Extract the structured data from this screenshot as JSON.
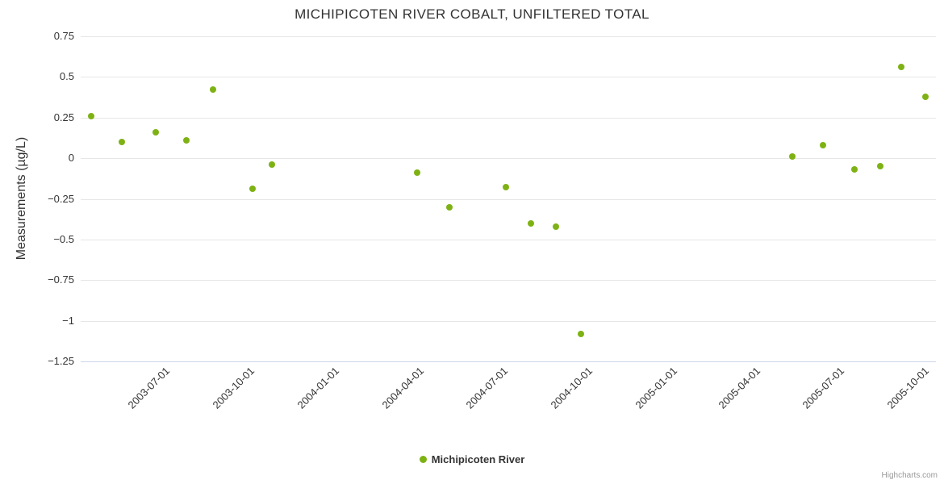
{
  "chart_data": {
    "type": "scatter",
    "title": "MICHIPICOTEN RIVER COBALT, UNFILTERED TOTAL",
    "xlabel": "",
    "ylabel": "Measurements (µg/L)",
    "grid": "horizontal",
    "legend_position": "bottom-center",
    "series": [
      {
        "name": "Michipicoten River",
        "color": "#7eb214",
        "points": [
          {
            "date": "2003-04-19",
            "value": 0.26
          },
          {
            "date": "2003-05-23",
            "value": 0.1
          },
          {
            "date": "2003-06-28",
            "value": 0.16
          },
          {
            "date": "2003-08-01",
            "value": 0.11
          },
          {
            "date": "2003-08-29",
            "value": 0.42
          },
          {
            "date": "2003-10-11",
            "value": -0.19
          },
          {
            "date": "2003-11-01",
            "value": -0.04
          },
          {
            "date": "2004-04-07",
            "value": -0.09
          },
          {
            "date": "2004-05-12",
            "value": -0.3
          },
          {
            "date": "2004-07-12",
            "value": -0.18
          },
          {
            "date": "2004-08-08",
            "value": -0.4
          },
          {
            "date": "2004-09-04",
            "value": -0.42
          },
          {
            "date": "2004-10-01",
            "value": -1.08
          },
          {
            "date": "2005-05-18",
            "value": 0.01
          },
          {
            "date": "2005-06-21",
            "value": 0.08
          },
          {
            "date": "2005-07-25",
            "value": -0.07
          },
          {
            "date": "2005-08-22",
            "value": -0.05
          },
          {
            "date": "2005-09-13",
            "value": 0.56
          },
          {
            "date": "2005-10-10",
            "value": 0.38
          }
        ]
      }
    ],
    "x_axis": {
      "min": "2003-04-08",
      "max": "2005-10-21",
      "ticks": [
        "2003-07-01",
        "2003-10-01",
        "2004-01-01",
        "2004-04-01",
        "2004-07-01",
        "2004-10-01",
        "2005-01-01",
        "2005-04-01",
        "2005-07-01",
        "2005-10-01"
      ]
    },
    "y_axis": {
      "min": -1.25,
      "max": 0.75,
      "tick_interval": 0.25,
      "ticks": [
        {
          "value": 0.75,
          "label": "0.75"
        },
        {
          "value": 0.5,
          "label": "0.5"
        },
        {
          "value": 0.25,
          "label": "0.25"
        },
        {
          "value": 0,
          "label": "0"
        },
        {
          "value": -0.25,
          "label": "−0.25"
        },
        {
          "value": -0.5,
          "label": "−0.5"
        },
        {
          "value": -0.75,
          "label": "−0.75"
        },
        {
          "value": -1,
          "label": "−1"
        },
        {
          "value": -1.25,
          "label": "−1.25"
        }
      ]
    }
  },
  "credits": {
    "label": "Highcharts.com"
  }
}
